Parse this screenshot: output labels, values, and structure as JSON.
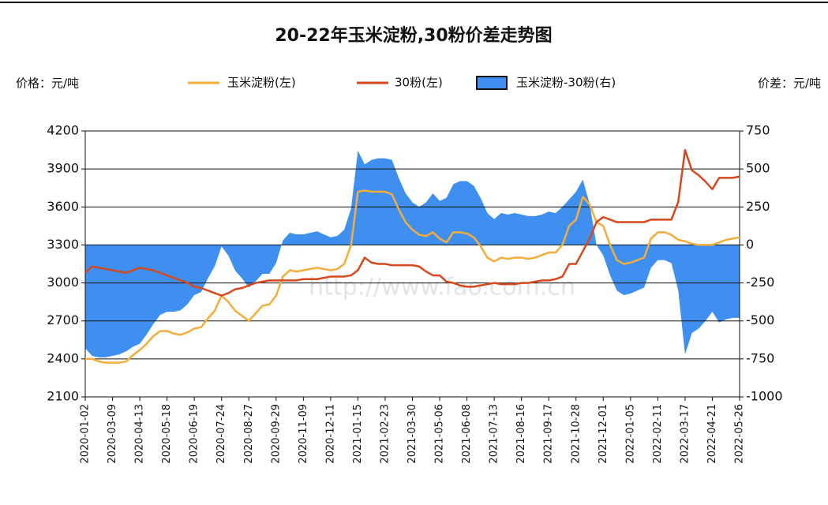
{
  "chart_data": {
    "type": "line",
    "title": "20-22年玉米淀粉,30粉价差走势图",
    "y_label": "价格：元/吨",
    "y2_label": "价差：元/吨",
    "watermark": "http://www.fao.com.cn",
    "legend": "top",
    "grid": true,
    "categories": [
      "2020-01-02",
      null,
      null,
      null,
      "2020-03-09",
      null,
      null,
      null,
      "2020-04-13",
      null,
      null,
      null,
      "2020-05-18",
      null,
      null,
      null,
      "2020-06-19",
      null,
      null,
      null,
      "2020-07-24",
      null,
      null,
      null,
      "2020-08-27",
      null,
      null,
      null,
      "2020-09-29",
      null,
      null,
      null,
      "2020-11-09",
      null,
      null,
      null,
      "2020-12-11",
      null,
      null,
      null,
      "2021-01-15",
      null,
      null,
      null,
      "2021-02-23",
      null,
      null,
      null,
      "2021-03-30",
      null,
      null,
      null,
      "2021-05-06",
      null,
      null,
      null,
      "2021-06-08",
      null,
      null,
      null,
      "2021-07-13",
      null,
      null,
      null,
      "2021-08-16",
      null,
      null,
      null,
      "2021-09-17",
      null,
      null,
      null,
      "2021-10-28",
      null,
      null,
      null,
      "2021-12-01",
      null,
      null,
      null,
      "2022-01-05",
      null,
      null,
      null,
      "2022-02-11",
      null,
      null,
      null,
      "2022-03-17",
      null,
      null,
      null,
      "2022-04-21",
      null,
      null,
      null,
      "2022-05-26"
    ],
    "ylim": [
      2100,
      4200
    ],
    "yticks": [
      2100,
      2400,
      2700,
      3000,
      3300,
      3600,
      3900,
      4200
    ],
    "y2lim": [
      -1000,
      750
    ],
    "y2ticks": [
      -1000,
      -750,
      -500,
      -250,
      0,
      250,
      500,
      750
    ],
    "series": [
      {
        "name": "玉米淀粉(左)",
        "color": "#f4ac3a",
        "values": [
          2400,
          2400,
          2380,
          2370,
          2370,
          2370,
          2380,
          2430,
          2470,
          2520,
          2580,
          2620,
          2620,
          2600,
          2590,
          2610,
          2640,
          2650,
          2720,
          2780,
          2900,
          2850,
          2780,
          2740,
          2700,
          2760,
          2820,
          2830,
          2900,
          3050,
          3100,
          3090,
          3100,
          3110,
          3120,
          3110,
          3100,
          3110,
          3150,
          3300,
          3720,
          3730,
          3720,
          3720,
          3720,
          3700,
          3580,
          3480,
          3420,
          3380,
          3370,
          3400,
          3350,
          3320,
          3400,
          3400,
          3390,
          3360,
          3290,
          3200,
          3170,
          3200,
          3190,
          3200,
          3200,
          3190,
          3200,
          3220,
          3240,
          3240,
          3300,
          3450,
          3500,
          3680,
          3620,
          3480,
          3450,
          3300,
          3180,
          3150,
          3160,
          3180,
          3200,
          3350,
          3400,
          3400,
          3380,
          3340,
          3330,
          3310,
          3300,
          3300,
          3300,
          3320,
          3340,
          3350,
          3360
        ]
      },
      {
        "name": "30粉(左)",
        "color": "#d7481c",
        "values": [
          3080,
          3130,
          3120,
          3110,
          3100,
          3090,
          3080,
          3100,
          3120,
          3110,
          3100,
          3080,
          3060,
          3040,
          3020,
          3000,
          2970,
          2960,
          2940,
          2920,
          2900,
          2920,
          2950,
          2960,
          2980,
          3000,
          3010,
          3020,
          3020,
          3020,
          3020,
          3020,
          3030,
          3030,
          3030,
          3040,
          3050,
          3050,
          3050,
          3060,
          3100,
          3200,
          3160,
          3150,
          3150,
          3140,
          3140,
          3140,
          3140,
          3130,
          3090,
          3060,
          3060,
          3010,
          3000,
          2980,
          2970,
          2970,
          2980,
          2990,
          3000,
          2990,
          2990,
          2990,
          3000,
          3000,
          3010,
          3020,
          3020,
          3030,
          3050,
          3150,
          3150,
          3250,
          3350,
          3480,
          3520,
          3500,
          3480,
          3480,
          3480,
          3480,
          3480,
          3500,
          3500,
          3500,
          3500,
          3640,
          4050,
          3890,
          3850,
          3800,
          3740,
          3830,
          3830,
          3830,
          3840
        ]
      },
      {
        "name": "玉米淀粉-30粉(右)",
        "color": "#3f8ff0",
        "axis": "y2",
        "values": [
          -680,
          -730,
          -740,
          -740,
          -730,
          -720,
          -700,
          -670,
          -650,
          -590,
          -520,
          -460,
          -440,
          -440,
          -430,
          -390,
          -330,
          -310,
          -220,
          -140,
          -10,
          -70,
          -170,
          -220,
          -280,
          -240,
          -190,
          -190,
          -120,
          30,
          80,
          70,
          70,
          80,
          90,
          70,
          50,
          60,
          100,
          240,
          620,
          530,
          560,
          570,
          570,
          560,
          440,
          340,
          280,
          250,
          280,
          340,
          290,
          310,
          400,
          420,
          420,
          390,
          310,
          210,
          170,
          210,
          200,
          210,
          200,
          190,
          190,
          200,
          220,
          210,
          250,
          300,
          350,
          430,
          270,
          0,
          -70,
          -200,
          -300,
          -330,
          -320,
          -300,
          -280,
          -150,
          -100,
          -100,
          -120,
          -300,
          -720,
          -580,
          -550,
          -500,
          -440,
          -510,
          -490,
          -480,
          -480
        ]
      }
    ]
  }
}
